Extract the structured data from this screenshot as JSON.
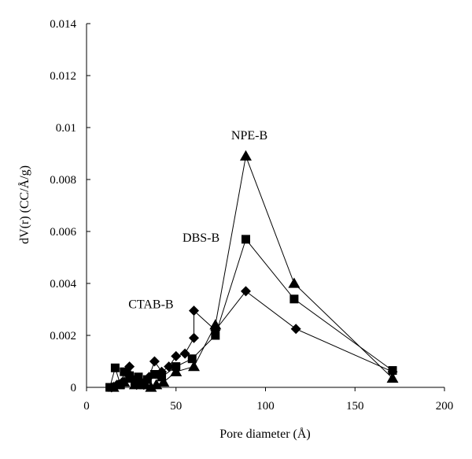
{
  "chart_data": {
    "type": "line",
    "title": "",
    "xlabel": "Pore diameter (Å)",
    "ylabel": "dV(r) (CC/Å/g)",
    "xlim": [
      0,
      200
    ],
    "ylim": [
      0,
      0.014
    ],
    "x_ticks": [
      0,
      50,
      100,
      150,
      200
    ],
    "x_tick_labels": [
      "0",
      "50",
      "100",
      "150",
      "200"
    ],
    "y_ticks": [
      0,
      0.002,
      0.004,
      0.006,
      0.008,
      0.01,
      0.012,
      0.014
    ],
    "y_tick_labels": [
      "0",
      "0.002",
      "0.004",
      "0.006",
      "0.008",
      "0.01",
      "0.012",
      "0.014"
    ],
    "grid": false,
    "legend": "none",
    "series": [
      {
        "name": "CTAB-B",
        "marker": "diamond",
        "points": [
          [
            14,
            0.0
          ],
          [
            17,
            0.0001
          ],
          [
            20,
            0.0002
          ],
          [
            22,
            0.0006
          ],
          [
            24,
            0.0008
          ],
          [
            26,
            0.0003
          ],
          [
            28,
            0.0001
          ],
          [
            30,
            0.0002
          ],
          [
            32,
            0.0001
          ],
          [
            35,
            0.0004
          ],
          [
            38,
            0.001
          ],
          [
            42,
            0.0006
          ],
          [
            46,
            0.0008
          ],
          [
            50,
            0.0012
          ],
          [
            55,
            0.0013
          ],
          [
            60,
            0.0019
          ],
          [
            60,
            0.00295
          ],
          [
            72,
            0.0022
          ],
          [
            89,
            0.0037
          ],
          [
            117,
            0.00225
          ],
          [
            171,
            0.0006
          ]
        ]
      },
      {
        "name": "DBS-B",
        "marker": "square",
        "points": [
          [
            13,
            0.0
          ],
          [
            16,
            0.00075
          ],
          [
            19,
            0.0001
          ],
          [
            21,
            0.0006
          ],
          [
            24,
            0.00045
          ],
          [
            27,
            0.0002
          ],
          [
            29,
            0.0004
          ],
          [
            32,
            0.0001
          ],
          [
            34,
            0.0003
          ],
          [
            38,
            0.0005
          ],
          [
            42,
            0.0004
          ],
          [
            50,
            0.0008
          ],
          [
            59,
            0.0011
          ],
          [
            72,
            0.002
          ],
          [
            89,
            0.0057
          ],
          [
            116,
            0.0034
          ],
          [
            171,
            0.00065
          ]
        ]
      },
      {
        "name": "NPE-B",
        "marker": "triangle",
        "points": [
          [
            15,
            0.0
          ],
          [
            18,
            0.0001
          ],
          [
            21,
            0.0002
          ],
          [
            24,
            0.00035
          ],
          [
            27,
            0.0001
          ],
          [
            30,
            0.0003
          ],
          [
            33,
            0.0001
          ],
          [
            36,
            0.0
          ],
          [
            39,
            0.0001
          ],
          [
            43,
            0.0002
          ],
          [
            50,
            0.0006
          ],
          [
            60,
            0.0008
          ],
          [
            72,
            0.0024
          ],
          [
            89,
            0.0089
          ],
          [
            116,
            0.004
          ],
          [
            171,
            0.00035
          ]
        ]
      }
    ],
    "annotations": [
      {
        "text": "NPE-B",
        "x": 91,
        "y": 0.00955
      },
      {
        "text": "DBS-B",
        "x": 64,
        "y": 0.0056
      },
      {
        "text": "CTAB-B",
        "x": 36,
        "y": 0.00305
      }
    ]
  }
}
